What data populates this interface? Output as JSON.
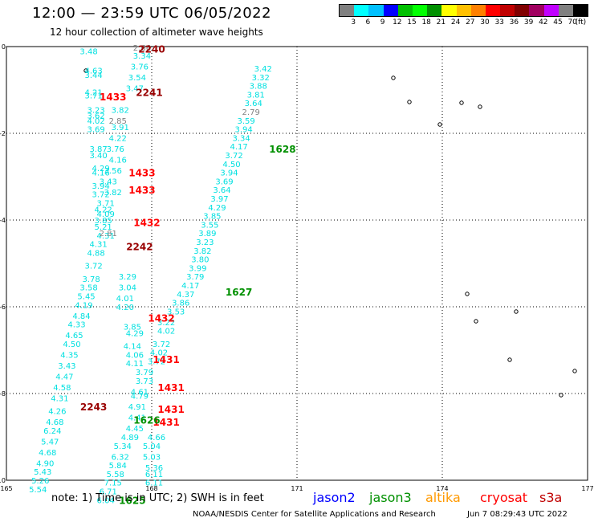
{
  "title": "12:00 — 23:59 UTC 06/05/2022",
  "subtitle": "12 hour collection of altimeter wave heights",
  "color_scale": {
    "colors": [
      "#808080",
      "#00ffff",
      "#00c0ff",
      "#0000ff",
      "#00c000",
      "#00ff00",
      "#009000",
      "#ffff00",
      "#ffc000",
      "#ff8000",
      "#ff0000",
      "#c00000",
      "#800000",
      "#a00060",
      "#c000ff",
      "#808080",
      "#000000"
    ],
    "labels": [
      "3",
      "6",
      "9",
      "12",
      "15",
      "18",
      "21",
      "24",
      "27",
      "30",
      "33",
      "36",
      "39",
      "42",
      "45",
      "70",
      "(ft)"
    ]
  },
  "note": "note: 1) Time is in UTC; 2) SWH is in feet",
  "missions": [
    {
      "name": "jason2",
      "color": "#0000ff"
    },
    {
      "name": "jason3",
      "color": "#009000"
    },
    {
      "name": "altika",
      "color": "#ff9900"
    },
    {
      "name": "cryosat",
      "color": "#ff0000"
    },
    {
      "name": "s3a",
      "color": "#c00000"
    }
  ],
  "credit": "NOAA/NESDIS Center for Satellite Applications and Research",
  "timestamp": "Jun  7 08:29:43 UTC 2022",
  "chart_data": {
    "type": "scatter",
    "xlim": [
      165,
      177
    ],
    "ylim": [
      -10,
      0
    ],
    "x_ticks": [
      "165",
      "168",
      "171",
      "174",
      "177"
    ],
    "y_ticks": [
      "0",
      "-2",
      "-4",
      "-6",
      "-8",
      "-10"
    ],
    "grid": true,
    "swh_labels": [
      {
        "x": 166.7,
        "y": -0.1,
        "t": "3.48",
        "c": "#00e0e0"
      },
      {
        "x": 166.8,
        "y": -0.55,
        "t": "4.63",
        "c": "#00e0e0"
      },
      {
        "x": 166.8,
        "y": -0.65,
        "t": "3.44",
        "c": "#00e0e0"
      },
      {
        "x": 166.8,
        "y": -1.05,
        "t": "4.21",
        "c": "#00e0e0"
      },
      {
        "x": 166.8,
        "y": -1.12,
        "t": "3.71",
        "c": "#00e0e0"
      },
      {
        "x": 166.85,
        "y": -1.45,
        "t": "3.23",
        "c": "#00e0e0"
      },
      {
        "x": 166.85,
        "y": -1.58,
        "t": "3.62",
        "c": "#00e0e0"
      },
      {
        "x": 166.85,
        "y": -1.7,
        "t": "4.02",
        "c": "#00e0e0"
      },
      {
        "x": 166.85,
        "y": -1.9,
        "t": "3.69",
        "c": "#00e0e0"
      },
      {
        "x": 167.3,
        "y": -1.7,
        "t": "2.85",
        "c": "#808080"
      },
      {
        "x": 167.35,
        "y": -1.45,
        "t": "3.82",
        "c": "#00e0e0"
      },
      {
        "x": 167.35,
        "y": -1.85,
        "t": "3.91",
        "c": "#00e0e0"
      },
      {
        "x": 167.3,
        "y": -2.1,
        "t": "4.22",
        "c": "#00e0e0"
      },
      {
        "x": 167.8,
        "y": -0.02,
        "t": "2.66",
        "c": "#808080"
      },
      {
        "x": 167.8,
        "y": -0.2,
        "t": "3.34",
        "c": "#00e0e0"
      },
      {
        "x": 167.75,
        "y": -0.45,
        "t": "3.76",
        "c": "#00e0e0"
      },
      {
        "x": 167.7,
        "y": -0.7,
        "t": "3.54",
        "c": "#00e0e0"
      },
      {
        "x": 167.65,
        "y": -0.95,
        "t": "3.47",
        "c": "#00e0e0"
      },
      {
        "x": 166.9,
        "y": -2.35,
        "t": "3.87",
        "c": "#00e0e0"
      },
      {
        "x": 167.25,
        "y": -2.35,
        "t": "3.76",
        "c": "#00e0e0"
      },
      {
        "x": 166.9,
        "y": -2.5,
        "t": "3.40",
        "c": "#00e0e0"
      },
      {
        "x": 167.3,
        "y": -2.6,
        "t": "4.16",
        "c": "#00e0e0"
      },
      {
        "x": 166.95,
        "y": -2.8,
        "t": "4.29",
        "c": "#00e0e0"
      },
      {
        "x": 167.2,
        "y": -2.85,
        "t": "3.56",
        "c": "#00e0e0"
      },
      {
        "x": 166.95,
        "y": -2.9,
        "t": "4.16",
        "c": "#00e0e0"
      },
      {
        "x": 167.1,
        "y": -3.1,
        "t": "3.43",
        "c": "#00e0e0"
      },
      {
        "x": 166.95,
        "y": -3.2,
        "t": "3.94",
        "c": "#00e0e0"
      },
      {
        "x": 167.2,
        "y": -3.35,
        "t": "3.82",
        "c": "#00e0e0"
      },
      {
        "x": 166.95,
        "y": -3.4,
        "t": "3.72",
        "c": "#00e0e0"
      },
      {
        "x": 167.05,
        "y": -3.6,
        "t": "3.71",
        "c": "#00e0e0"
      },
      {
        "x": 167.0,
        "y": -3.75,
        "t": "4.22",
        "c": "#00e0e0"
      },
      {
        "x": 167.05,
        "y": -3.85,
        "t": "4.09",
        "c": "#00e0e0"
      },
      {
        "x": 167.0,
        "y": -4.0,
        "t": "3.85",
        "c": "#00e0e0"
      },
      {
        "x": 167.0,
        "y": -4.15,
        "t": "5.21",
        "c": "#00e0e0"
      },
      {
        "x": 167.05,
        "y": -4.35,
        "t": "4.31",
        "c": "#00e0e0"
      },
      {
        "x": 167.1,
        "y": -4.3,
        "t": "2.81",
        "c": "#808080"
      },
      {
        "x": 166.9,
        "y": -4.55,
        "t": "4.31",
        "c": "#00e0e0"
      },
      {
        "x": 166.85,
        "y": -4.75,
        "t": "4.88",
        "c": "#00e0e0"
      },
      {
        "x": 166.8,
        "y": -5.05,
        "t": "3.72",
        "c": "#00e0e0"
      },
      {
        "x": 166.75,
        "y": -5.35,
        "t": "3.78",
        "c": "#00e0e0"
      },
      {
        "x": 166.7,
        "y": -5.55,
        "t": "3.58",
        "c": "#00e0e0"
      },
      {
        "x": 166.65,
        "y": -5.75,
        "t": "5.45",
        "c": "#00e0e0"
      },
      {
        "x": 166.6,
        "y": -5.95,
        "t": "4.19",
        "c": "#00e0e0"
      },
      {
        "x": 166.55,
        "y": -6.2,
        "t": "4.84",
        "c": "#00e0e0"
      },
      {
        "x": 166.45,
        "y": -6.4,
        "t": "4.33",
        "c": "#00e0e0"
      },
      {
        "x": 166.4,
        "y": -6.65,
        "t": "4.65",
        "c": "#00e0e0"
      },
      {
        "x": 166.35,
        "y": -6.85,
        "t": "4.50",
        "c": "#00e0e0"
      },
      {
        "x": 166.3,
        "y": -7.1,
        "t": "4.35",
        "c": "#00e0e0"
      },
      {
        "x": 166.25,
        "y": -7.35,
        "t": "3.43",
        "c": "#00e0e0"
      },
      {
        "x": 166.2,
        "y": -7.6,
        "t": "4.47",
        "c": "#00e0e0"
      },
      {
        "x": 166.15,
        "y": -7.85,
        "t": "4.58",
        "c": "#00e0e0"
      },
      {
        "x": 166.1,
        "y": -8.1,
        "t": "4.31",
        "c": "#00e0e0"
      },
      {
        "x": 166.05,
        "y": -8.4,
        "t": "4.26",
        "c": "#00e0e0"
      },
      {
        "x": 166.0,
        "y": -8.65,
        "t": "4.68",
        "c": "#00e0e0"
      },
      {
        "x": 165.95,
        "y": -8.85,
        "t": "6.24",
        "c": "#00e0e0"
      },
      {
        "x": 165.9,
        "y": -9.1,
        "t": "5.47",
        "c": "#00e0e0"
      },
      {
        "x": 165.85,
        "y": -9.35,
        "t": "4.68",
        "c": "#00e0e0"
      },
      {
        "x": 165.8,
        "y": -9.6,
        "t": "4.90",
        "c": "#00e0e0"
      },
      {
        "x": 165.75,
        "y": -9.8,
        "t": "5.43",
        "c": "#00e0e0"
      },
      {
        "x": 165.7,
        "y": -10.0,
        "t": "5.26",
        "c": "#00e0e0"
      },
      {
        "x": 165.65,
        "y": -10.2,
        "t": "5.54",
        "c": "#00e0e0"
      },
      {
        "x": 167.5,
        "y": -5.3,
        "t": "3.29",
        "c": "#00e0e0"
      },
      {
        "x": 167.5,
        "y": -5.55,
        "t": "3.04",
        "c": "#00e0e0"
      },
      {
        "x": 167.45,
        "y": -5.8,
        "t": "4.01",
        "c": "#00e0e0"
      },
      {
        "x": 167.45,
        "y": -6.0,
        "t": "4.20",
        "c": "#00e0e0"
      },
      {
        "x": 167.6,
        "y": -6.45,
        "t": "3.85",
        "c": "#00e0e0"
      },
      {
        "x": 167.65,
        "y": -6.6,
        "t": "4.29",
        "c": "#00e0e0"
      },
      {
        "x": 167.6,
        "y": -6.9,
        "t": "4.14",
        "c": "#00e0e0"
      },
      {
        "x": 167.65,
        "y": -7.1,
        "t": "4.06",
        "c": "#00e0e0"
      },
      {
        "x": 167.65,
        "y": -7.3,
        "t": "4.11",
        "c": "#00e0e0"
      },
      {
        "x": 167.85,
        "y": -7.5,
        "t": "3.79",
        "c": "#00e0e0"
      },
      {
        "x": 167.85,
        "y": -7.7,
        "t": "3.73",
        "c": "#00e0e0"
      },
      {
        "x": 167.75,
        "y": -7.95,
        "t": "4.61",
        "c": "#00e0e0"
      },
      {
        "x": 167.75,
        "y": -8.05,
        "t": "4.79",
        "c": "#00e0e0"
      },
      {
        "x": 167.7,
        "y": -8.3,
        "t": "4.91",
        "c": "#00e0e0"
      },
      {
        "x": 167.7,
        "y": -8.55,
        "t": "4.41",
        "c": "#00e0e0"
      },
      {
        "x": 167.65,
        "y": -8.8,
        "t": "4.45",
        "c": "#00e0e0"
      },
      {
        "x": 167.55,
        "y": -9.0,
        "t": "4.89",
        "c": "#00e0e0"
      },
      {
        "x": 167.4,
        "y": -9.2,
        "t": "5.34",
        "c": "#00e0e0"
      },
      {
        "x": 167.35,
        "y": -9.45,
        "t": "6.32",
        "c": "#00e0e0"
      },
      {
        "x": 167.3,
        "y": -9.65,
        "t": "5.84",
        "c": "#00e0e0"
      },
      {
        "x": 167.25,
        "y": -9.85,
        "t": "5.58",
        "c": "#00e0e0"
      },
      {
        "x": 167.2,
        "y": -10.05,
        "t": "7.15",
        "c": "#00e0e0"
      },
      {
        "x": 167.1,
        "y": -10.25,
        "t": "6.71",
        "c": "#00e0e0"
      },
      {
        "x": 167.05,
        "y": -10.45,
        "t": "6.04",
        "c": "#00e0e0"
      },
      {
        "x": 168.0,
        "y": -9.2,
        "t": "5.04",
        "c": "#00e0e0"
      },
      {
        "x": 168.0,
        "y": -9.45,
        "t": "5.03",
        "c": "#00e0e0"
      },
      {
        "x": 168.05,
        "y": -9.7,
        "t": "5.36",
        "c": "#00e0e0"
      },
      {
        "x": 168.05,
        "y": -9.85,
        "t": "6.11",
        "c": "#00e0e0"
      },
      {
        "x": 168.05,
        "y": -10.05,
        "t": "6.11",
        "c": "#00e0e0"
      },
      {
        "x": 168.1,
        "y": -9.0,
        "t": "4.66",
        "c": "#00e0e0"
      },
      {
        "x": 168.3,
        "y": -6.55,
        "t": "4.02",
        "c": "#00e0e0"
      },
      {
        "x": 168.2,
        "y": -6.85,
        "t": "3.72",
        "c": "#00e0e0"
      },
      {
        "x": 168.15,
        "y": -7.05,
        "t": "4.02",
        "c": "#00e0e0"
      },
      {
        "x": 168.1,
        "y": -7.25,
        "t": "3.72",
        "c": "#00e0e0"
      },
      {
        "x": 168.3,
        "y": -6.35,
        "t": "3.22",
        "c": "#00e0e0"
      },
      {
        "x": 168.5,
        "y": -6.1,
        "t": "3.53",
        "c": "#00e0e0"
      },
      {
        "x": 168.6,
        "y": -5.9,
        "t": "3.86",
        "c": "#00e0e0"
      },
      {
        "x": 168.7,
        "y": -5.7,
        "t": "4.37",
        "c": "#00e0e0"
      },
      {
        "x": 168.8,
        "y": -5.5,
        "t": "4.17",
        "c": "#00e0e0"
      },
      {
        "x": 168.9,
        "y": -5.3,
        "t": "3.79",
        "c": "#00e0e0"
      },
      {
        "x": 168.95,
        "y": -5.1,
        "t": "3.99",
        "c": "#00e0e0"
      },
      {
        "x": 169.0,
        "y": -4.9,
        "t": "3.80",
        "c": "#00e0e0"
      },
      {
        "x": 169.05,
        "y": -4.7,
        "t": "3.82",
        "c": "#00e0e0"
      },
      {
        "x": 169.1,
        "y": -4.5,
        "t": "3.23",
        "c": "#00e0e0"
      },
      {
        "x": 169.15,
        "y": -4.3,
        "t": "3.89",
        "c": "#00e0e0"
      },
      {
        "x": 169.2,
        "y": -4.1,
        "t": "3.55",
        "c": "#00e0e0"
      },
      {
        "x": 169.25,
        "y": -3.9,
        "t": "3.85",
        "c": "#00e0e0"
      },
      {
        "x": 169.35,
        "y": -3.7,
        "t": "4.29",
        "c": "#00e0e0"
      },
      {
        "x": 169.4,
        "y": -3.5,
        "t": "3.97",
        "c": "#00e0e0"
      },
      {
        "x": 169.45,
        "y": -3.3,
        "t": "3.64",
        "c": "#00e0e0"
      },
      {
        "x": 169.5,
        "y": -3.1,
        "t": "3.69",
        "c": "#00e0e0"
      },
      {
        "x": 169.6,
        "y": -2.9,
        "t": "3.94",
        "c": "#00e0e0"
      },
      {
        "x": 169.65,
        "y": -2.7,
        "t": "4.50",
        "c": "#00e0e0"
      },
      {
        "x": 169.7,
        "y": -2.5,
        "t": "3.72",
        "c": "#00e0e0"
      },
      {
        "x": 169.8,
        "y": -2.3,
        "t": "4.17",
        "c": "#00e0e0"
      },
      {
        "x": 169.85,
        "y": -2.1,
        "t": "3.34",
        "c": "#00e0e0"
      },
      {
        "x": 169.9,
        "y": -1.9,
        "t": "3.94",
        "c": "#00e0e0"
      },
      {
        "x": 169.95,
        "y": -1.7,
        "t": "3.59",
        "c": "#00e0e0"
      },
      {
        "x": 170.05,
        "y": -1.5,
        "t": "2.79",
        "c": "#808080"
      },
      {
        "x": 170.1,
        "y": -1.3,
        "t": "3.64",
        "c": "#00e0e0"
      },
      {
        "x": 170.15,
        "y": -1.1,
        "t": "3.81",
        "c": "#00e0e0"
      },
      {
        "x": 170.2,
        "y": -0.9,
        "t": "3.88",
        "c": "#00e0e0"
      },
      {
        "x": 170.25,
        "y": -0.7,
        "t": "3.32",
        "c": "#00e0e0"
      },
      {
        "x": 170.3,
        "y": -0.5,
        "t": "3.42",
        "c": "#00e0e0"
      }
    ],
    "time_labels": [
      {
        "x": 168.0,
        "y": -0.05,
        "t": "2240",
        "c": "#990000"
      },
      {
        "x": 167.95,
        "y": -1.05,
        "t": "2241",
        "c": "#990000"
      },
      {
        "x": 167.2,
        "y": -1.15,
        "t": "1433",
        "c": "#ff0000"
      },
      {
        "x": 167.8,
        "y": -2.9,
        "t": "1433",
        "c": "#ff0000"
      },
      {
        "x": 167.8,
        "y": -3.3,
        "t": "1433",
        "c": "#ff0000"
      },
      {
        "x": 167.9,
        "y": -4.05,
        "t": "1432",
        "c": "#ff0000"
      },
      {
        "x": 167.75,
        "y": -4.6,
        "t": "2242",
        "c": "#990000"
      },
      {
        "x": 168.2,
        "y": -6.25,
        "t": "1432",
        "c": "#ff0000"
      },
      {
        "x": 168.3,
        "y": -7.2,
        "t": "1431",
        "c": "#ff0000"
      },
      {
        "x": 168.4,
        "y": -7.85,
        "t": "1431",
        "c": "#ff0000"
      },
      {
        "x": 168.4,
        "y": -8.35,
        "t": "1431",
        "c": "#ff0000"
      },
      {
        "x": 168.3,
        "y": -8.65,
        "t": "1431",
        "c": "#ff0000"
      },
      {
        "x": 166.8,
        "y": -8.3,
        "t": "2243",
        "c": "#990000"
      },
      {
        "x": 170.7,
        "y": -2.35,
        "t": "1628",
        "c": "#009000"
      },
      {
        "x": 169.8,
        "y": -5.65,
        "t": "1627",
        "c": "#009000"
      },
      {
        "x": 167.9,
        "y": -8.6,
        "t": "1626",
        "c": "#009000"
      },
      {
        "x": 167.6,
        "y": -10.45,
        "t": "1625",
        "c": "#009000"
      }
    ]
  }
}
